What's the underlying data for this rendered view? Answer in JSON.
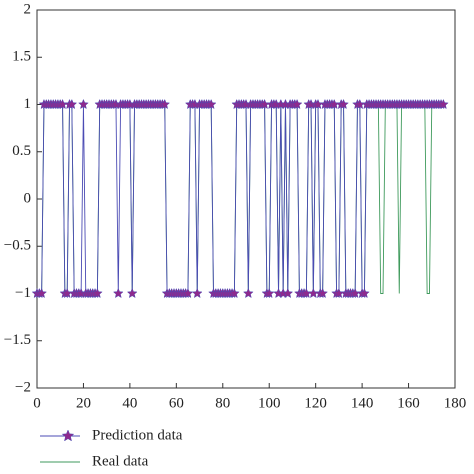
{
  "chart_data": {
    "type": "line",
    "x": [
      0,
      1,
      2,
      3,
      4,
      5,
      6,
      7,
      8,
      9,
      10,
      11,
      12,
      13,
      14,
      15,
      16,
      17,
      18,
      19,
      20,
      21,
      22,
      23,
      24,
      25,
      26,
      27,
      28,
      29,
      30,
      31,
      32,
      33,
      34,
      35,
      36,
      37,
      38,
      39,
      40,
      41,
      42,
      43,
      44,
      45,
      46,
      47,
      48,
      49,
      50,
      51,
      52,
      53,
      54,
      55,
      56,
      57,
      58,
      59,
      60,
      61,
      62,
      63,
      64,
      65,
      66,
      67,
      68,
      69,
      70,
      71,
      72,
      73,
      74,
      75,
      76,
      77,
      78,
      79,
      80,
      81,
      82,
      83,
      84,
      85,
      86,
      87,
      88,
      89,
      90,
      91,
      92,
      93,
      94,
      95,
      96,
      97,
      98,
      99,
      100,
      101,
      102,
      103,
      104,
      105,
      106,
      107,
      108,
      109,
      110,
      111,
      112,
      113,
      114,
      115,
      116,
      117,
      118,
      119,
      120,
      121,
      122,
      123,
      124,
      125,
      126,
      127,
      128,
      129,
      130,
      131,
      132,
      133,
      134,
      135,
      136,
      137,
      138,
      139,
      140,
      141,
      142,
      143,
      144,
      145,
      146,
      147,
      148,
      149,
      150,
      151,
      152,
      153,
      154,
      155,
      156,
      157,
      158,
      159,
      160,
      161,
      162,
      163,
      164,
      165,
      166,
      167,
      168,
      169,
      170,
      171,
      172,
      173,
      174,
      175
    ],
    "series": [
      {
        "name": "Prediction data",
        "color": "#4b4bb4",
        "marker_color": "#8e2a8e",
        "values": [
          -1,
          -1,
          -1,
          1,
          1,
          1,
          1,
          1,
          1,
          1,
          1,
          1,
          -1,
          -1,
          1,
          1,
          -1,
          -1,
          -1,
          -1,
          1,
          -1,
          -1,
          -1,
          -1,
          -1,
          -1,
          1,
          1,
          1,
          1,
          1,
          1,
          1,
          1,
          -1,
          1,
          1,
          1,
          1,
          1,
          -1,
          1,
          1,
          1,
          1,
          1,
          1,
          1,
          1,
          1,
          1,
          1,
          1,
          1,
          1,
          -1,
          -1,
          -1,
          -1,
          -1,
          -1,
          -1,
          -1,
          -1,
          -1,
          1,
          1,
          1,
          -1,
          1,
          1,
          1,
          1,
          1,
          1,
          -1,
          -1,
          -1,
          -1,
          -1,
          -1,
          -1,
          -1,
          -1,
          -1,
          1,
          1,
          1,
          1,
          1,
          -1,
          1,
          1,
          1,
          1,
          1,
          1,
          1,
          -1,
          -1,
          1,
          1,
          1,
          -1,
          1,
          -1,
          1,
          -1,
          1,
          1,
          1,
          1,
          -1,
          -1,
          -1,
          -1,
          1,
          1,
          -1,
          1,
          1,
          -1,
          -1,
          1,
          1,
          1,
          1,
          1,
          -1,
          -1,
          1,
          1,
          -1,
          -1,
          -1,
          -1,
          -1,
          1,
          1,
          -1,
          -1,
          1,
          1,
          1,
          1,
          1,
          1,
          1,
          1,
          1,
          1,
          1,
          1,
          1,
          1,
          1,
          1,
          1,
          1,
          1,
          1,
          1,
          1,
          1,
          1,
          1,
          1,
          1,
          1,
          1,
          1,
          1,
          1,
          1,
          1
        ]
      },
      {
        "name": "Real data",
        "color": "#3f9a5c",
        "values": [
          -1,
          -1,
          -1,
          1,
          1,
          1,
          1,
          1,
          1,
          1,
          1,
          1,
          -1,
          -1,
          1,
          1,
          -1,
          -1,
          -1,
          -1,
          -1,
          -1,
          -1,
          -1,
          -1,
          -1,
          -1,
          1,
          1,
          1,
          1,
          1,
          1,
          1,
          1,
          1,
          1,
          1,
          1,
          1,
          1,
          -1,
          1,
          1,
          1,
          1,
          1,
          1,
          1,
          1,
          1,
          1,
          1,
          1,
          1,
          1,
          -1,
          -1,
          -1,
          -1,
          -1,
          -1,
          -1,
          -1,
          -1,
          -1,
          1,
          1,
          1,
          -1,
          1,
          1,
          1,
          1,
          1,
          1,
          -1,
          -1,
          -1,
          -1,
          -1,
          -1,
          -1,
          -1,
          -1,
          -1,
          1,
          1,
          1,
          1,
          1,
          -1,
          1,
          1,
          1,
          1,
          1,
          1,
          1,
          -1,
          -1,
          1,
          1,
          1,
          -1,
          1,
          -1,
          1,
          -1,
          1,
          1,
          1,
          1,
          -1,
          -1,
          -1,
          -1,
          1,
          1,
          -1,
          1,
          1,
          -1,
          -1,
          1,
          1,
          1,
          1,
          1,
          -1,
          -1,
          1,
          1,
          -1,
          -1,
          -1,
          -1,
          -1,
          1,
          1,
          -1,
          -1,
          1,
          1,
          1,
          1,
          1,
          1,
          -1,
          -1,
          1,
          1,
          1,
          1,
          1,
          1,
          -1,
          1,
          1,
          1,
          1,
          1,
          1,
          1,
          1,
          1,
          1,
          1,
          -1,
          -1,
          1,
          1,
          1,
          1,
          1,
          1
        ]
      }
    ],
    "xlim": [
      0,
      180
    ],
    "xticks": [
      0,
      20,
      40,
      60,
      80,
      100,
      120,
      140,
      160,
      180
    ],
    "ylim": [
      -2,
      2
    ],
    "yticks": [
      {
        "value": -2,
        "label": "−2"
      },
      {
        "value": -1.5,
        "label": "−1.5"
      },
      {
        "value": -1,
        "label": "−1"
      },
      {
        "value": -0.5,
        "label": "−0.5"
      },
      0,
      0.5,
      1,
      1.5,
      2
    ]
  }
}
